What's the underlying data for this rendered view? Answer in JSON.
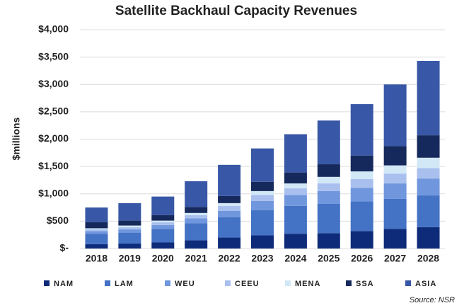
{
  "chart_data": {
    "type": "stacked-bar",
    "title": "Satellite Backhaul Capacity Revenues",
    "y_label": "$millions",
    "source": "Source: NSR",
    "categories": [
      "2018",
      "2019",
      "2020",
      "2021",
      "2022",
      "2023",
      "2024",
      "2025",
      "2026",
      "2027",
      "2028"
    ],
    "series": [
      {
        "name": "NAM",
        "color": "#0d2b78",
        "values": [
          80,
          90,
          110,
          150,
          200,
          240,
          270,
          280,
          320,
          360,
          390
        ]
      },
      {
        "name": "LAM",
        "color": "#4472c4",
        "values": [
          190,
          200,
          250,
          310,
          370,
          460,
          510,
          540,
          540,
          550,
          580
        ]
      },
      {
        "name": "WEU",
        "color": "#7097dd",
        "values": [
          50,
          60,
          70,
          90,
          120,
          170,
          200,
          230,
          250,
          280,
          310
        ]
      },
      {
        "name": "CEEU",
        "color": "#a9c0ee",
        "values": [
          30,
          40,
          50,
          60,
          90,
          110,
          120,
          140,
          160,
          180,
          190
        ]
      },
      {
        "name": "MENA",
        "color": "#d2e8f7",
        "values": [
          20,
          30,
          30,
          40,
          50,
          70,
          90,
          120,
          140,
          150,
          190
        ]
      },
      {
        "name": "SSA",
        "color": "#16295c",
        "values": [
          110,
          90,
          100,
          110,
          130,
          170,
          200,
          230,
          290,
          350,
          410
        ]
      },
      {
        "name": "ASIA",
        "color": "#3857a6",
        "values": [
          270,
          320,
          340,
          470,
          570,
          610,
          700,
          800,
          940,
          1130,
          1360
        ]
      }
    ],
    "ylim": [
      0,
      4000
    ],
    "yticks": [
      {
        "value": 0,
        "label": "$-"
      },
      {
        "value": 500,
        "label": "$500"
      },
      {
        "value": 1000,
        "label": "$1,000"
      },
      {
        "value": 1500,
        "label": "$1,500"
      },
      {
        "value": 2000,
        "label": "$2,000"
      },
      {
        "value": 2500,
        "label": "$2,500"
      },
      {
        "value": 3000,
        "label": "$3,000"
      },
      {
        "value": 3500,
        "label": "$3,500"
      },
      {
        "value": 4000,
        "label": "$4,000"
      }
    ],
    "grid": true
  }
}
